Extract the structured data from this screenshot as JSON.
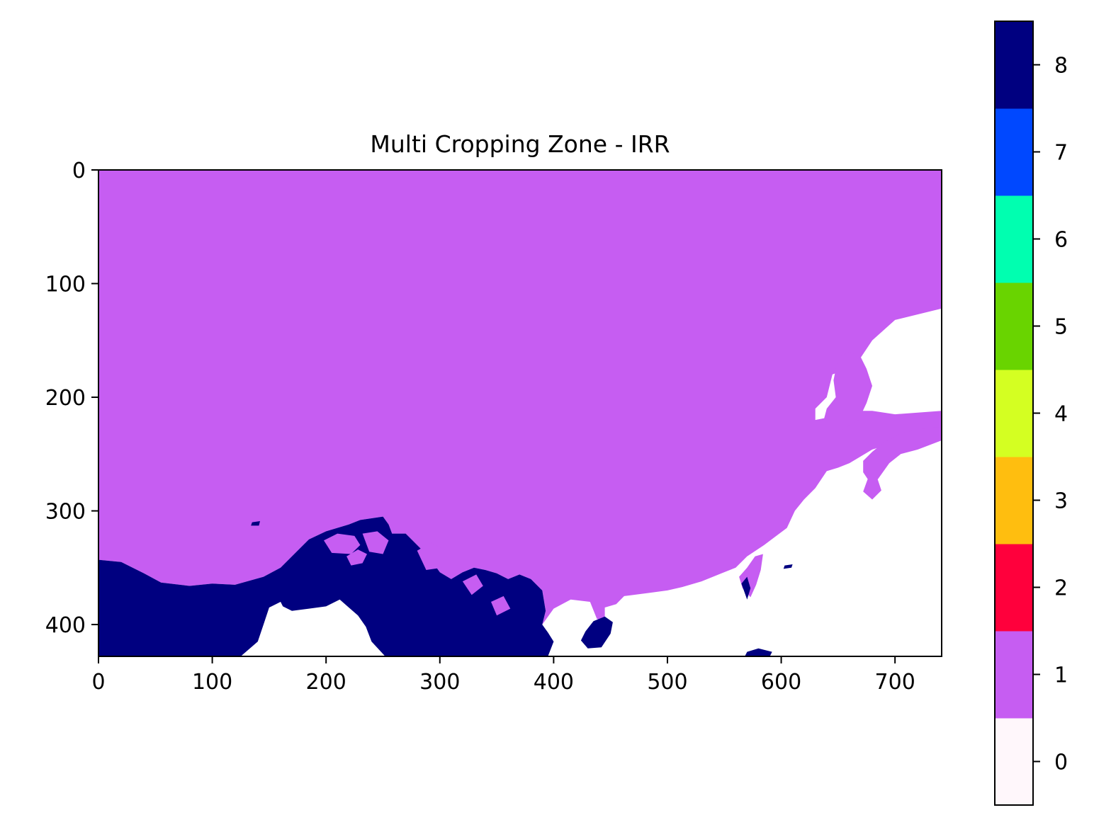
{
  "chart_data": {
    "type": "heatmap",
    "title": "Multi Cropping Zone - IRR",
    "xlabel": "",
    "ylabel": "",
    "xlim": [
      0,
      741
    ],
    "ylim": [
      428,
      0
    ],
    "x_ticks": [
      0,
      100,
      200,
      300,
      400,
      500,
      600,
      700
    ],
    "y_ticks": [
      0,
      100,
      200,
      300,
      400
    ],
    "grid": false,
    "colorbar": {
      "range": [
        -0.5,
        8.5
      ],
      "ticks": [
        0,
        1,
        2,
        3,
        4,
        5,
        6,
        7,
        8
      ],
      "levels": [
        {
          "value": 0,
          "color": "#fff7fb"
        },
        {
          "value": 1,
          "color": "#c65df2"
        },
        {
          "value": 2,
          "color": "#ff003c"
        },
        {
          "value": 3,
          "color": "#ffbe0f"
        },
        {
          "value": 4,
          "color": "#d4ff22"
        },
        {
          "value": 5,
          "color": "#69d400"
        },
        {
          "value": 6,
          "color": "#00ffb0"
        },
        {
          "value": 7,
          "color": "#0048ff"
        },
        {
          "value": 8,
          "color": "#000080"
        }
      ]
    },
    "zones": [
      {
        "name": "zone-1",
        "value": 1,
        "color": "#c65df2",
        "polygon": [
          [
            0,
            0
          ],
          [
            741,
            0
          ],
          [
            741,
            122
          ],
          [
            700,
            132
          ],
          [
            680,
            150
          ],
          [
            670,
            165
          ],
          [
            650,
            178
          ],
          [
            645,
            180
          ],
          [
            640,
            200
          ],
          [
            630,
            210
          ],
          [
            630,
            220
          ],
          [
            655,
            215
          ],
          [
            665,
            212
          ],
          [
            680,
            212
          ],
          [
            700,
            215
          ],
          [
            741,
            212
          ],
          [
            741,
            228
          ],
          [
            720,
            236
          ],
          [
            700,
            240
          ],
          [
            680,
            246
          ],
          [
            660,
            258
          ],
          [
            650,
            262
          ],
          [
            640,
            265
          ],
          [
            630,
            280
          ],
          [
            620,
            290
          ],
          [
            612,
            300
          ],
          [
            605,
            315
          ],
          [
            585,
            330
          ],
          [
            570,
            340
          ],
          [
            560,
            350
          ],
          [
            545,
            356
          ],
          [
            530,
            362
          ],
          [
            513,
            367
          ],
          [
            500,
            370
          ],
          [
            485,
            372
          ],
          [
            462,
            375
          ],
          [
            455,
            382
          ],
          [
            445,
            385
          ],
          [
            445,
            398
          ],
          [
            438,
            395
          ],
          [
            432,
            380
          ],
          [
            415,
            378
          ],
          [
            400,
            386
          ],
          [
            390,
            400
          ],
          [
            393,
            388
          ],
          [
            390,
            370
          ],
          [
            380,
            360
          ],
          [
            370,
            356
          ],
          [
            360,
            360
          ],
          [
            350,
            355
          ],
          [
            340,
            352
          ],
          [
            330,
            350
          ],
          [
            320,
            354
          ],
          [
            310,
            360
          ],
          [
            300,
            354
          ],
          [
            290,
            340
          ],
          [
            280,
            330
          ],
          [
            270,
            320
          ],
          [
            258,
            320
          ],
          [
            255,
            312
          ],
          [
            250,
            305
          ],
          [
            230,
            308
          ],
          [
            220,
            312
          ],
          [
            200,
            318
          ],
          [
            185,
            325
          ],
          [
            175,
            335
          ],
          [
            160,
            350
          ],
          [
            145,
            358
          ],
          [
            120,
            365
          ],
          [
            100,
            364
          ],
          [
            80,
            366
          ],
          [
            55,
            363
          ],
          [
            40,
            355
          ],
          [
            20,
            345
          ],
          [
            0,
            343
          ]
        ]
      },
      {
        "name": "zone-8",
        "value": 8,
        "color": "#000080",
        "polygon": [
          [
            0,
            343
          ],
          [
            20,
            345
          ],
          [
            40,
            355
          ],
          [
            55,
            363
          ],
          [
            80,
            366
          ],
          [
            100,
            364
          ],
          [
            120,
            365
          ],
          [
            145,
            358
          ],
          [
            160,
            350
          ],
          [
            175,
            335
          ],
          [
            185,
            325
          ],
          [
            200,
            318
          ],
          [
            220,
            312
          ],
          [
            230,
            308
          ],
          [
            250,
            305
          ],
          [
            255,
            312
          ],
          [
            258,
            320
          ],
          [
            270,
            320
          ],
          [
            280,
            330
          ],
          [
            290,
            340
          ],
          [
            300,
            354
          ],
          [
            310,
            360
          ],
          [
            320,
            354
          ],
          [
            330,
            350
          ],
          [
            340,
            352
          ],
          [
            350,
            355
          ],
          [
            360,
            360
          ],
          [
            370,
            356
          ],
          [
            380,
            360
          ],
          [
            390,
            370
          ],
          [
            393,
            388
          ],
          [
            390,
            400
          ],
          [
            395,
            407
          ],
          [
            400,
            415
          ],
          [
            395,
            428
          ],
          [
            252,
            428
          ],
          [
            240,
            415
          ],
          [
            235,
            402
          ],
          [
            228,
            392
          ],
          [
            220,
            385
          ],
          [
            212,
            378
          ],
          [
            200,
            384
          ],
          [
            185,
            386
          ],
          [
            170,
            388
          ],
          [
            162,
            384
          ],
          [
            160,
            380
          ],
          [
            150,
            385
          ],
          [
            145,
            400
          ],
          [
            140,
            415
          ],
          [
            125,
            428
          ],
          [
            0,
            428
          ]
        ]
      },
      {
        "name": "zone-8-hainan",
        "value": 8,
        "color": "#000080",
        "polygon": [
          [
            428,
            406
          ],
          [
            435,
            397
          ],
          [
            445,
            393
          ],
          [
            452,
            398
          ],
          [
            450,
            408
          ],
          [
            442,
            420
          ],
          [
            430,
            421
          ],
          [
            424,
            414
          ]
        ]
      },
      {
        "name": "zone-1-in-8-a",
        "value": 1,
        "color": "#c65df2",
        "polygon": [
          [
            198,
            326
          ],
          [
            210,
            320
          ],
          [
            225,
            322
          ],
          [
            230,
            330
          ],
          [
            222,
            338
          ],
          [
            205,
            337
          ]
        ]
      },
      {
        "name": "zone-1-in-8-b",
        "value": 1,
        "color": "#c65df2",
        "polygon": [
          [
            218,
            340
          ],
          [
            228,
            334
          ],
          [
            236,
            338
          ],
          [
            232,
            346
          ],
          [
            222,
            348
          ]
        ]
      },
      {
        "name": "zone-1-in-8-c",
        "value": 1,
        "color": "#c65df2",
        "polygon": [
          [
            232,
            320
          ],
          [
            245,
            318
          ],
          [
            255,
            326
          ],
          [
            250,
            338
          ],
          [
            238,
            336
          ]
        ]
      },
      {
        "name": "zone-1-in-8-d",
        "value": 1,
        "color": "#c65df2",
        "polygon": [
          [
            280,
            335
          ],
          [
            292,
            328
          ],
          [
            305,
            335
          ],
          [
            302,
            350
          ],
          [
            288,
            352
          ]
        ]
      },
      {
        "name": "zone-1-in-8-e",
        "value": 1,
        "color": "#c65df2",
        "polygon": [
          [
            320,
            362
          ],
          [
            332,
            356
          ],
          [
            338,
            366
          ],
          [
            328,
            374
          ]
        ]
      },
      {
        "name": "zone-1-in-8-f",
        "value": 1,
        "color": "#c65df2",
        "polygon": [
          [
            345,
            380
          ],
          [
            356,
            375
          ],
          [
            362,
            386
          ],
          [
            350,
            392
          ]
        ]
      },
      {
        "name": "zone-1-taiwan",
        "value": 1,
        "color": "#c65df2",
        "polygon": [
          [
            570,
            350
          ],
          [
            577,
            340
          ],
          [
            584,
            338
          ],
          [
            582,
            352
          ],
          [
            578,
            365
          ],
          [
            573,
            376
          ],
          [
            566,
            368
          ],
          [
            563,
            358
          ]
        ]
      },
      {
        "name": "zone-8-taiwan",
        "value": 8,
        "color": "#000080",
        "polygon": [
          [
            565,
            364
          ],
          [
            570,
            358
          ],
          [
            573,
            368
          ],
          [
            570,
            378
          ]
        ]
      },
      {
        "name": "zone-1-korea",
        "value": 1,
        "color": "#c65df2",
        "polygon": [
          [
            650,
            165
          ],
          [
            660,
            160
          ],
          [
            670,
            165
          ],
          [
            675,
            175
          ],
          [
            680,
            190
          ],
          [
            675,
            205
          ],
          [
            668,
            220
          ],
          [
            655,
            228
          ],
          [
            642,
            232
          ],
          [
            636,
            225
          ],
          [
            640,
            210
          ],
          [
            648,
            200
          ],
          [
            646,
            185
          ]
        ]
      },
      {
        "name": "zone-1-japan",
        "value": 1,
        "color": "#c65df2",
        "polygon": [
          [
            690,
            240
          ],
          [
            705,
            232
          ],
          [
            720,
            228
          ],
          [
            741,
            226
          ],
          [
            741,
            238
          ],
          [
            720,
            246
          ],
          [
            705,
            250
          ],
          [
            695,
            258
          ],
          [
            690,
            265
          ],
          [
            685,
            272
          ],
          [
            678,
            275
          ],
          [
            672,
            266
          ],
          [
            672,
            256
          ],
          [
            680,
            248
          ]
        ]
      },
      {
        "name": "zone-1-kyushu",
        "value": 1,
        "color": "#c65df2",
        "polygon": [
          [
            676,
            272
          ],
          [
            684,
            270
          ],
          [
            688,
            282
          ],
          [
            680,
            290
          ],
          [
            672,
            283
          ]
        ]
      },
      {
        "name": "zone-8-luzon",
        "value": 8,
        "color": "#000080",
        "polygon": [
          [
            570,
            424
          ],
          [
            580,
            421
          ],
          [
            592,
            424
          ],
          [
            590,
            428
          ],
          [
            568,
            428
          ]
        ]
      },
      {
        "name": "zone-8-spot",
        "value": 8,
        "color": "#000080",
        "polygon": [
          [
            135,
            310
          ],
          [
            142,
            309
          ],
          [
            141,
            313
          ],
          [
            134,
            313
          ]
        ]
      },
      {
        "name": "zone-8-ryukyu",
        "value": 8,
        "color": "#000080",
        "polygon": [
          [
            603,
            348
          ],
          [
            610,
            347
          ],
          [
            609,
            350
          ],
          [
            602,
            351
          ]
        ]
      }
    ]
  }
}
